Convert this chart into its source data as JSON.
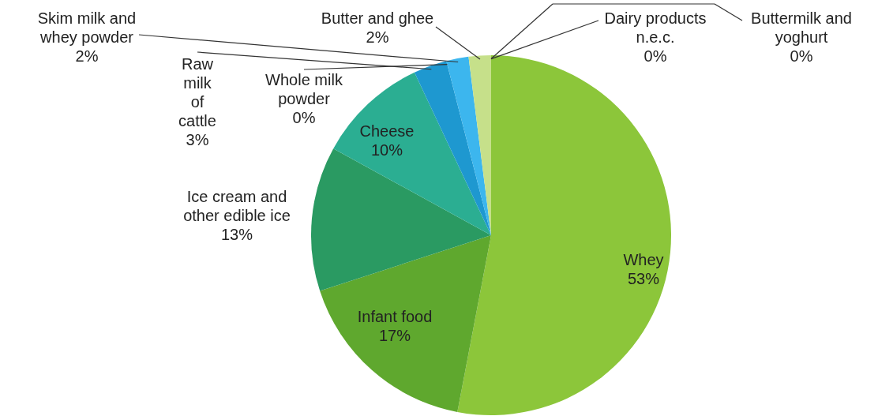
{
  "chart_data": {
    "type": "pie",
    "categories": [
      "Whey",
      "Infant food",
      "Ice cream and other edible ice",
      "Cheese",
      "Raw milk of cattle",
      "Whole milk powder",
      "Skim milk and whey powder",
      "Butter and ghee",
      "Dairy products n.e.c.",
      "Buttermilk and yoghurt"
    ],
    "values": [
      53,
      17,
      13,
      10,
      3,
      0,
      2,
      2,
      0,
      0
    ],
    "colors": [
      "#8cc63a",
      "#5fa82e",
      "#2a9a62",
      "#2bae92",
      "#1e98d0",
      "#7fb6d6",
      "#3cb6ee",
      "#c6e08a",
      "#8a9fb0",
      "#6c8c4e"
    ],
    "value_labels": [
      "53%",
      "17%",
      "13%",
      "10%",
      "3%",
      "0%",
      "2%",
      "2%",
      "0%",
      "0%"
    ]
  }
}
